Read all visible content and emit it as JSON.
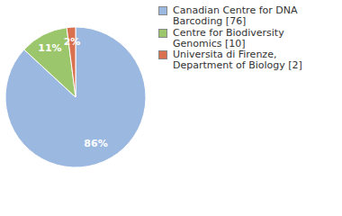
{
  "chart_data": {
    "type": "pie",
    "categories": [
      "Canadian Centre for DNA Barcoding [76]",
      "Centre for Biodiversity Genomics [10]",
      "Universita di Firenze, Department of Biology [2]"
    ],
    "values": [
      86,
      11,
      2
    ],
    "value_labels": [
      "86%",
      "11%",
      "2%"
    ],
    "colors": [
      "#9bb9e0",
      "#9cc66b",
      "#d9704f"
    ],
    "data_labels": true
  }
}
